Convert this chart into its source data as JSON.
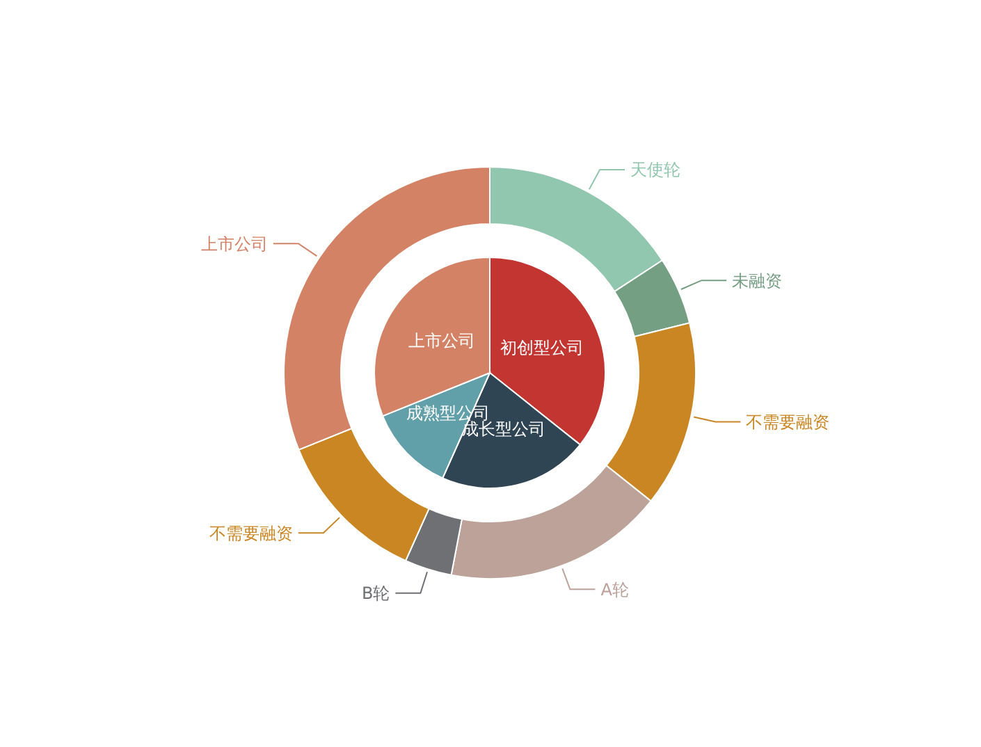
{
  "chart_data": [
    {
      "type": "pie",
      "categories": [
        "初创型公司",
        "成长型公司",
        "成熟型公司",
        "上市公司"
      ],
      "values": [
        35.7,
        21.0,
        12.2,
        31.1
      ],
      "colors": [
        "#c23531",
        "#2f4554",
        "#61a0a8",
        "#d48265"
      ]
    },
    {
      "type": "donut",
      "categories": [
        "天使轮",
        "未融资",
        "不需要融资",
        "A轮",
        "B轮",
        "不需要融资",
        "上市公司"
      ],
      "values": [
        15.8,
        5.3,
        14.6,
        17.3,
        3.7,
        12.2,
        31.1
      ],
      "colors": [
        "#91c7ae",
        "#749f83",
        "#ca8622",
        "#bda29a",
        "#6e7074",
        "#ca8622",
        "#d48265"
      ]
    }
  ]
}
